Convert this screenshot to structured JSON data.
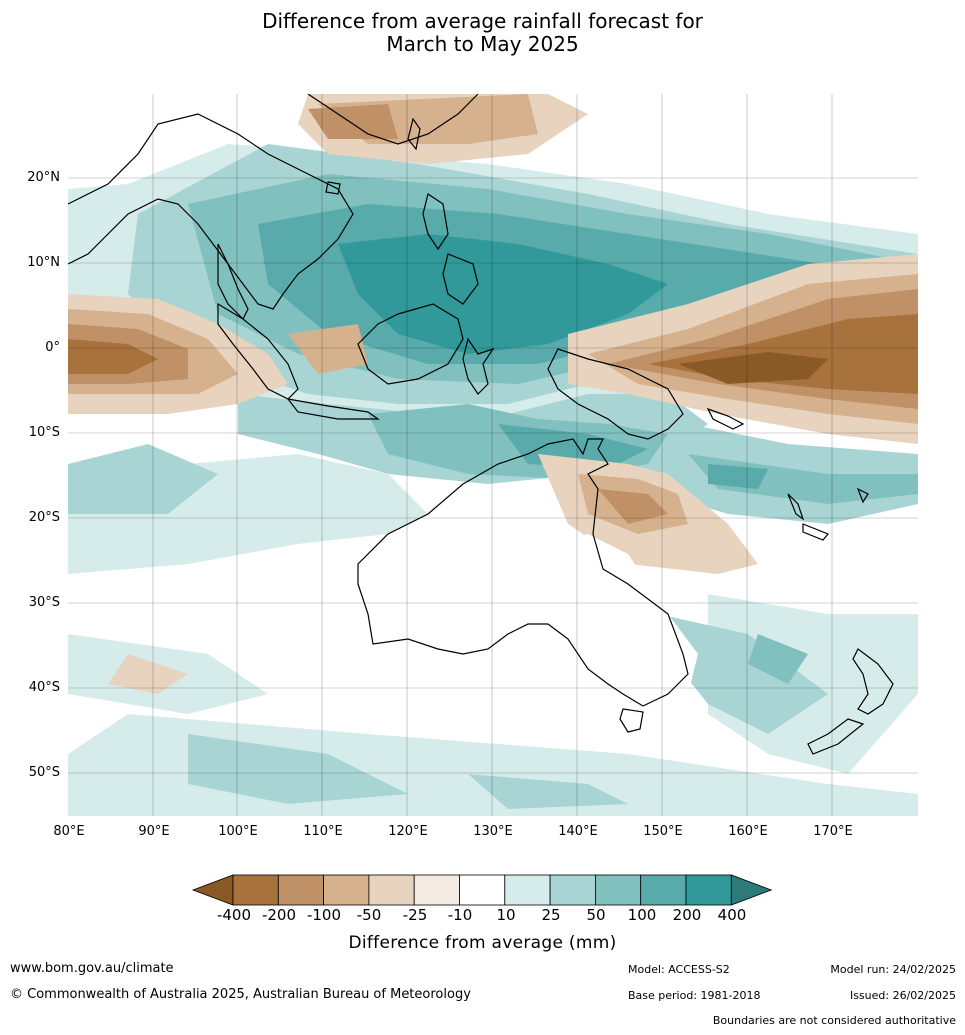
{
  "title_line1": "Difference from average rainfall forecast for",
  "title_line2": "March to May 2025",
  "lat_labels": [
    "20°N",
    "10°N",
    "0°",
    "10°S",
    "20°S",
    "30°S",
    "40°S",
    "50°S"
  ],
  "lon_labels": [
    "80°E",
    "90°E",
    "100°E",
    "110°E",
    "120°E",
    "130°E",
    "140°E",
    "150°E",
    "160°E",
    "170°E"
  ],
  "legend": {
    "title": "Difference from average (mm)",
    "ticks": [
      "-400",
      "-200",
      "-100",
      "-50",
      "-25",
      "-10",
      "10",
      "25",
      "50",
      "100",
      "200",
      "400"
    ],
    "colors": [
      "#8a5a26",
      "#a8723c",
      "#c09066",
      "#d6b18e",
      "#e8d3bf",
      "#f4ebe3",
      "#ffffff",
      "#d6eceb",
      "#a8d5d3",
      "#80c0be",
      "#58abaa",
      "#32999a",
      "#2d7a7a"
    ]
  },
  "footer": {
    "url": "www.bom.gov.au/climate",
    "copyright": "© Commonwealth of Australia 2025, Australian Bureau of Meteorology",
    "model": "Model: ACCESS-S2",
    "base_period": "Base period: 1981-2018",
    "model_run": "Model run: 24/02/2025",
    "issued": "Issued: 26/02/2025",
    "disclaimer": "Boundaries are not considered authoritative"
  }
}
